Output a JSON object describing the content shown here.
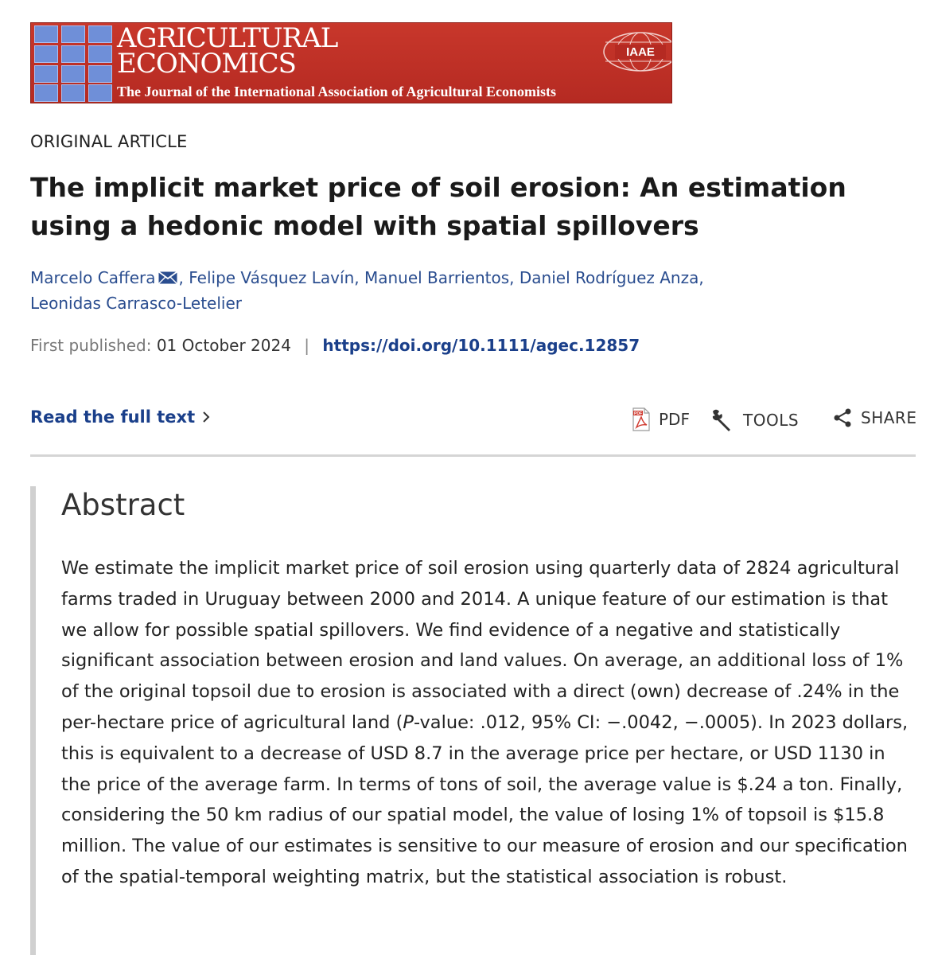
{
  "journal": {
    "name_line1": "AGRICULTURAL",
    "name_line2": "ECONOMICS",
    "subtitle": "The Journal of the International Association of Agricultural Economists",
    "logo_text": "IAAE",
    "colors": {
      "banner": "#c0392b",
      "squares": "#6f8fd8"
    }
  },
  "article": {
    "kicker": "ORIGINAL ARTICLE",
    "title": "The implicit market price of soil erosion: An estimation using a hedonic model with spatial spillovers",
    "authors": [
      {
        "name": "Marcelo Caffera",
        "has_mail_icon": true
      },
      {
        "name": "Felipe Vásquez Lavín"
      },
      {
        "name": "Manuel Barrientos"
      },
      {
        "name": "Daniel Rodríguez Anza"
      },
      {
        "name": "Leonidas Carrasco-Letelier"
      }
    ],
    "published_label": "First published:",
    "published_date": "01 October 2024",
    "separator": "|",
    "doi": "https://doi.org/10.1111/agec.12857"
  },
  "actions": {
    "read_full_text": "Read the full text",
    "chevron": "›",
    "pdf": "PDF",
    "tools": "TOOLS",
    "share": "SHARE",
    "icons": [
      "pdf-icon",
      "wrench-icon",
      "share-icon",
      "chevron-right-icon",
      "mail-icon"
    ]
  },
  "abstract": {
    "heading": "Abstract",
    "text_before_p": "We estimate the implicit market price of soil erosion using quarterly data of 2824 agricultural farms traded in Uruguay between 2000 and 2014. A unique feature of our estimation is that we allow for possible spatial spillovers. We find evidence of a negative and statistically significant association between erosion and land values. On average, an additional loss of 1% of the original topsoil due to erosion is associated with a direct (own) decrease of .24% in the per-hectare price of agricultural land (",
    "p_italic": "P",
    "text_after_p": "-value: .012, 95% CI: −.0042, −.0005). In 2023 dollars, this is equivalent to a decrease of USD 8.7 in the average price per hectare, or USD 1130 in the price of the average farm. In terms of tons of soil, the average value is $.24 a ton. Finally, considering the 50 km radius of our spatial model, the value of losing 1% of topsoil is $15.8 million. The value of our estimates is sensitive to our measure of erosion and our specification of the spatial-temporal weighting matrix, but the statistical association is robust."
  }
}
